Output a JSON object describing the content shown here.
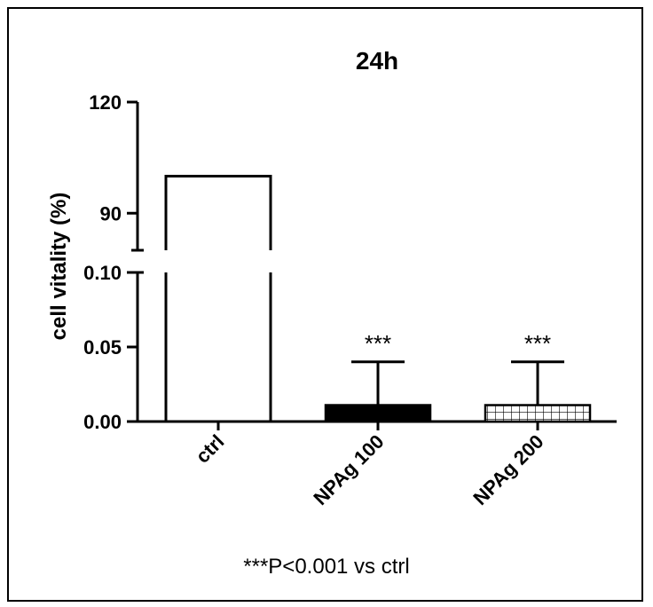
{
  "chart_data": {
    "type": "bar",
    "title": "24h",
    "xlabel": "",
    "ylabel": "cell vitality (%)",
    "categories": [
      "ctrl",
      "NPAg 100",
      "NPAg 200"
    ],
    "series": [
      {
        "values": [
          100,
          0.011,
          0.011
        ],
        "errors": [
          0,
          0.029,
          0.029
        ],
        "fills": [
          "none",
          "solid",
          "grid"
        ]
      }
    ],
    "y_axis_broken": true,
    "y_segments": [
      {
        "ylim": [
          0,
          0.1
        ],
        "ticks": [
          "0.00",
          "0.05",
          "0.10"
        ],
        "tick_values": [
          0,
          0.05,
          0.1
        ]
      },
      {
        "ylim": [
          80,
          120
        ],
        "ticks": [
          "90",
          "120"
        ],
        "tick_values": [
          90,
          120
        ]
      }
    ],
    "annotations": [
      "",
      "***",
      "***"
    ],
    "footnote": "***P<0.001 vs ctrl",
    "grid": false,
    "legend": "none",
    "colors": {
      "ink": "#000000",
      "background": "#ffffff"
    }
  }
}
